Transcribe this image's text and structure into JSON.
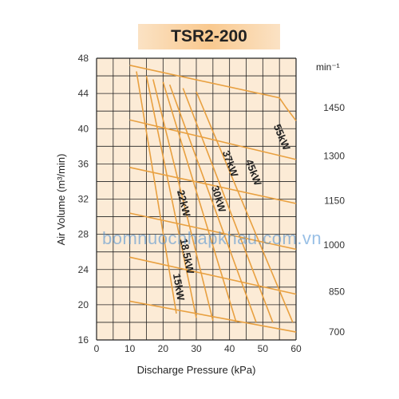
{
  "chart_data": {
    "type": "line",
    "title": "TSR2-200",
    "xlabel": "Discharge Pressure (kPa)",
    "ylabel": "Air Volume (m³/min)",
    "y2label": "min⁻¹",
    "xlim": [
      0,
      60
    ],
    "ylim": [
      16,
      48
    ],
    "x_ticks": [
      "0",
      "10",
      "20",
      "30",
      "40",
      "50",
      "60"
    ],
    "y_ticks": [
      "16",
      "20",
      "24",
      "28",
      "32",
      "36",
      "40",
      "44",
      "48"
    ],
    "y2_ticks": [
      {
        "label": "1450",
        "y": 42.4
      },
      {
        "label": "1300",
        "y": 36.9
      },
      {
        "label": "1150",
        "y": 31.8
      },
      {
        "label": "1000",
        "y": 26.8
      },
      {
        "label": "850",
        "y": 21.5
      },
      {
        "label": "700",
        "y": 16.9
      }
    ],
    "grid": true,
    "speed_lines": [
      {
        "label": "1450",
        "x": [
          10,
          55,
          57,
          60
        ],
        "y": [
          47.2,
          43.5,
          42.4,
          40.9
        ]
      },
      {
        "label": "1300",
        "x": [
          10,
          60
        ],
        "y": [
          41.0,
          36.5
        ]
      },
      {
        "label": "1150",
        "x": [
          10,
          60
        ],
        "y": [
          35.6,
          31.5
        ]
      },
      {
        "label": "1000",
        "x": [
          10,
          60
        ],
        "y": [
          30.4,
          26.3
        ]
      },
      {
        "label": "850",
        "x": [
          10,
          60
        ],
        "y": [
          25.4,
          21.2
        ]
      },
      {
        "label": "700",
        "x": [
          10,
          60
        ],
        "y": [
          20.4,
          16.9
        ]
      }
    ],
    "power_lines": [
      {
        "label": "15kW",
        "x": [
          12,
          24
        ],
        "y": [
          46.5,
          19.0
        ]
      },
      {
        "label": "18.5kW",
        "x": [
          15,
          30
        ],
        "y": [
          46.0,
          18.5
        ]
      },
      {
        "label": "22kW",
        "x": [
          17,
          35
        ],
        "y": [
          45.6,
          18.2
        ]
      },
      {
        "label": "30kW",
        "x": [
          20,
          42
        ],
        "y": [
          45.3,
          18.0
        ]
      },
      {
        "label": "37kW",
        "x": [
          22,
          48
        ],
        "y": [
          45.0,
          18.0
        ]
      },
      {
        "label": "45kW",
        "x": [
          26,
          53
        ],
        "y": [
          44.6,
          18.0
        ]
      },
      {
        "label": "55kW",
        "x": [
          30,
          59
        ],
        "y": [
          44.2,
          18.0
        ]
      }
    ],
    "annotations": [
      "55kW",
      "45kW",
      "37kW",
      "30kW",
      "22kW",
      "18.5kW",
      "15kW"
    ],
    "colors": {
      "curve": "#e8a040",
      "plot_bg": "#fcebd6",
      "grid": "#222222",
      "title_bg": "#f9c98f"
    }
  },
  "watermark": "bomnuocnhapkhau.com.vn"
}
